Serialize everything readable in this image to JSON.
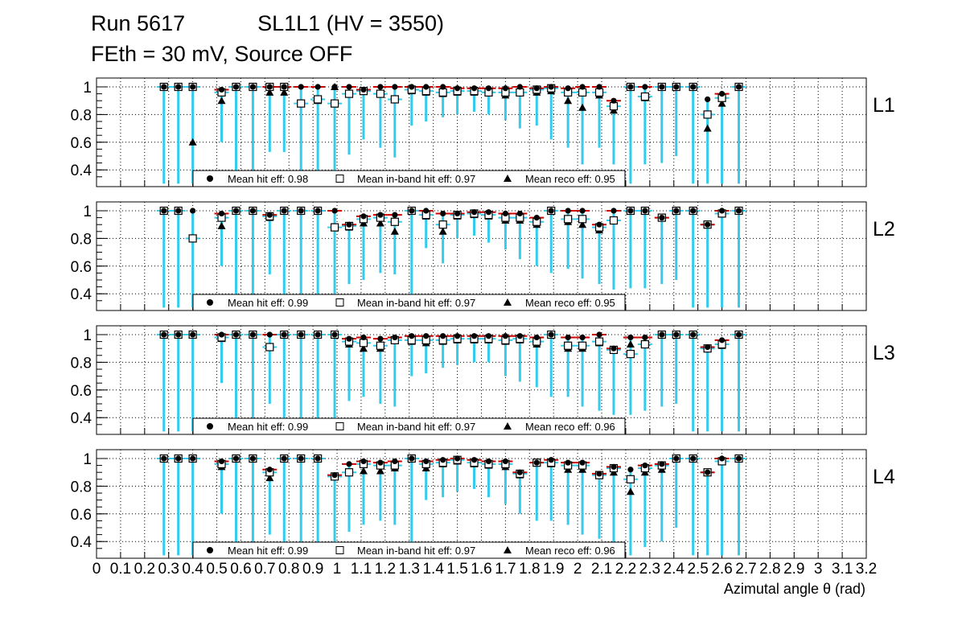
{
  "title": {
    "line1": "Run 5617            SL1L1 (HV = 3550)",
    "line2": "FEth = 30 mV, Source OFF"
  },
  "chart_data": {
    "type": "scatter",
    "xlabel": "Azimutal angle θ (rad)",
    "xlim": [
      0,
      3.2
    ],
    "x_ticks": [
      "0",
      "0.1",
      "0.2",
      "0.3",
      "0.4",
      "0.5",
      "0.6",
      "0.7",
      "0.8",
      "0.9",
      "1",
      "1.1",
      "1.2",
      "1.3",
      "1.4",
      "1.5",
      "1.6",
      "1.7",
      "1.8",
      "1.9",
      "2",
      "2.1",
      "2.2",
      "2.3",
      "2.4",
      "2.5",
      "2.6",
      "2.7",
      "2.8",
      "2.9",
      "3",
      "3.1",
      "3.2"
    ],
    "ylim": [
      0.3,
      1.05
    ],
    "y_ticks": [
      "0.4",
      "0.6",
      "0.8",
      "1"
    ],
    "grid": true,
    "series_styles": {
      "hit": {
        "marker": "filled-circle",
        "color": "#000000"
      },
      "inband": {
        "marker": "open-square",
        "color": "#000000"
      },
      "reco": {
        "marker": "filled-triangle",
        "color": "#000000"
      },
      "error_bar_color": "#33ccee",
      "accent_bar_color": "#cc0000",
      "accent_bar_color_2": "#8800cc"
    },
    "panels": [
      {
        "name": "L1",
        "legend": {
          "hit": "Mean hit  eff: 0.98",
          "inband": "Mean in-band hit eff: 0.97",
          "reco": "Mean reco eff: 0.95"
        },
        "x": [
          0.28,
          0.34,
          0.4,
          0.52,
          0.58,
          0.65,
          0.72,
          0.78,
          0.85,
          0.92,
          0.99,
          1.05,
          1.11,
          1.18,
          1.24,
          1.31,
          1.37,
          1.44,
          1.5,
          1.57,
          1.63,
          1.7,
          1.76,
          1.83,
          1.89,
          1.96,
          2.02,
          2.09,
          2.15,
          2.22,
          2.28,
          2.35,
          2.41,
          2.48,
          2.54,
          2.6,
          2.67
        ],
        "hit": [
          1,
          1,
          1,
          0.98,
          1,
          1,
          1,
          1,
          1,
          1,
          1,
          1,
          0.98,
          1,
          1,
          1,
          1,
          1,
          0.99,
          0.99,
          0.99,
          0.99,
          1,
          0.99,
          1,
          0.99,
          1,
          1,
          0.9,
          1,
          1,
          1,
          1,
          1,
          0.91,
          0.95,
          1
        ],
        "inband": [
          1,
          1,
          1,
          0.96,
          1,
          1,
          1,
          1,
          0.88,
          0.91,
          0.88,
          0.95,
          0.97,
          0.95,
          0.91,
          0.98,
          0.97,
          0.96,
          0.97,
          0.97,
          0.96,
          0.96,
          0.96,
          0.98,
          0.99,
          0.96,
          0.96,
          0.96,
          0.86,
          1,
          0.93,
          1,
          1,
          1,
          0.8,
          0.92,
          1
        ],
        "reco": [
          1,
          1,
          0.6,
          0.9,
          1,
          1,
          0.96,
          0.96,
          0.88,
          0.9,
          1,
          0.96,
          0.97,
          0.95,
          0.91,
          0.97,
          0.96,
          0.95,
          0.96,
          0.96,
          0.96,
          0.94,
          0.96,
          0.96,
          0.97,
          0.9,
          0.85,
          0.94,
          0.83,
          1,
          0.92,
          1,
          1,
          1,
          0.7,
          0.88,
          1
        ],
        "err_low": [
          0.3,
          0.3,
          0.3,
          0.6,
          0.3,
          0.3,
          0.53,
          0.53,
          0.3,
          0.3,
          0.3,
          0.51,
          0.62,
          0.56,
          0.49,
          0.72,
          0.75,
          0.78,
          0.8,
          0.82,
          0.8,
          0.76,
          0.7,
          0.72,
          0.62,
          0.56,
          0.44,
          0.56,
          0.44,
          0.3,
          0.44,
          0.45,
          0.5,
          0.3,
          0.3,
          0.3,
          0.3
        ]
      },
      {
        "name": "L2",
        "legend": {
          "hit": "Mean hit  eff: 0.99",
          "inband": "Mean in-band hit eff: 0.97",
          "reco": "Mean reco eff: 0.95"
        },
        "x": [
          0.28,
          0.34,
          0.4,
          0.52,
          0.58,
          0.65,
          0.72,
          0.78,
          0.85,
          0.92,
          0.99,
          1.05,
          1.11,
          1.18,
          1.24,
          1.31,
          1.37,
          1.44,
          1.5,
          1.57,
          1.63,
          1.7,
          1.76,
          1.83,
          1.89,
          1.96,
          2.02,
          2.09,
          2.15,
          2.22,
          2.28,
          2.35,
          2.41,
          2.48,
          2.54,
          2.6,
          2.67
        ],
        "hit": [
          1,
          1,
          1,
          0.98,
          1,
          1,
          0.97,
          1,
          1,
          1,
          1,
          0.9,
          0.96,
          0.97,
          0.97,
          1,
          1,
          0.98,
          0.98,
          0.99,
          0.99,
          0.98,
          0.98,
          0.95,
          1,
          1,
          1,
          0.9,
          1,
          1,
          1,
          0.95,
          1,
          1,
          0.9,
          1,
          1
        ],
        "inband": [
          1,
          1,
          0.8,
          0.95,
          1,
          1,
          0.96,
          1,
          1,
          1,
          0.88,
          0.89,
          0.94,
          0.95,
          0.92,
          1,
          0.97,
          0.9,
          0.97,
          0.98,
          0.97,
          0.95,
          0.95,
          0.92,
          1,
          0.94,
          0.94,
          0.88,
          0.93,
          1,
          1,
          0.95,
          1,
          1,
          0.9,
          0.98,
          1
        ],
        "reco": [
          1,
          1,
          0.8,
          0.89,
          1,
          1,
          0.95,
          1,
          1,
          1,
          0.88,
          0.88,
          0.91,
          0.91,
          0.85,
          1,
          0.96,
          0.85,
          0.96,
          0.97,
          0.96,
          0.93,
          0.93,
          0.9,
          1,
          0.92,
          0.9,
          0.86,
          0.93,
          1,
          1,
          0.95,
          1,
          1,
          0.9,
          0.98,
          1
        ],
        "err_low": [
          0.3,
          0.3,
          0.3,
          0.6,
          0.3,
          0.3,
          0.54,
          0.3,
          0.3,
          0.3,
          0.3,
          0.47,
          0.5,
          0.55,
          0.54,
          0.3,
          0.73,
          0.62,
          0.8,
          0.82,
          0.77,
          0.72,
          0.65,
          0.6,
          0.55,
          0.58,
          0.51,
          0.47,
          0.43,
          0.44,
          0.44,
          0.47,
          0.5,
          0.3,
          0.3,
          0.3,
          0.3
        ]
      },
      {
        "name": "L3",
        "legend": {
          "hit": "Mean hit  eff: 0.99",
          "inband": "Mean in-band hit eff: 0.97",
          "reco": "Mean reco eff: 0.96"
        },
        "x": [
          0.28,
          0.34,
          0.4,
          0.52,
          0.58,
          0.65,
          0.72,
          0.78,
          0.85,
          0.92,
          0.99,
          1.05,
          1.11,
          1.18,
          1.24,
          1.31,
          1.37,
          1.44,
          1.5,
          1.57,
          1.63,
          1.7,
          1.76,
          1.83,
          1.89,
          1.96,
          2.02,
          2.09,
          2.15,
          2.22,
          2.28,
          2.35,
          2.41,
          2.48,
          2.54,
          2.6,
          2.67
        ],
        "hit": [
          1,
          1,
          1,
          1,
          1,
          1,
          1,
          1,
          1,
          1,
          1,
          0.97,
          0.98,
          0.97,
          0.98,
          0.99,
          0.99,
          0.99,
          0.99,
          0.99,
          0.99,
          0.99,
          0.99,
          0.98,
          1,
          0.98,
          0.98,
          1,
          0.9,
          0.98,
          0.98,
          1,
          1,
          1,
          0.91,
          0.96,
          1
        ],
        "inband": [
          1,
          1,
          1,
          0.98,
          1,
          1,
          0.91,
          1,
          1,
          1,
          1,
          0.95,
          0.94,
          0.92,
          0.96,
          0.96,
          0.96,
          0.96,
          0.97,
          0.97,
          0.97,
          0.96,
          0.97,
          0.95,
          1,
          0.92,
          0.92,
          0.95,
          0.89,
          0.86,
          0.93,
          1,
          1,
          1,
          0.9,
          0.93,
          1
        ],
        "reco": [
          1,
          1,
          1,
          0.97,
          1,
          1,
          0.91,
          1,
          1,
          1,
          1,
          0.93,
          0.9,
          0.9,
          0.96,
          0.95,
          0.94,
          0.95,
          0.96,
          0.96,
          0.96,
          0.95,
          0.96,
          0.93,
          1,
          0.9,
          0.9,
          0.94,
          0.89,
          0.93,
          0.93,
          1,
          1,
          1,
          0.9,
          0.92,
          1
        ],
        "err_low": [
          0.3,
          0.3,
          0.3,
          0.65,
          0.3,
          0.3,
          0.5,
          0.3,
          0.3,
          0.3,
          0.3,
          0.52,
          0.55,
          0.5,
          0.48,
          0.7,
          0.72,
          0.76,
          0.78,
          0.8,
          0.8,
          0.7,
          0.66,
          0.62,
          0.55,
          0.55,
          0.48,
          0.45,
          0.42,
          0.42,
          0.45,
          0.48,
          0.5,
          0.3,
          0.3,
          0.3,
          0.3
        ]
      },
      {
        "name": "L4",
        "legend": {
          "hit": "Mean hit  eff: 0.99",
          "inband": "Mean in-band hit eff: 0.97",
          "reco": "Mean reco eff: 0.96"
        },
        "x": [
          0.28,
          0.34,
          0.4,
          0.52,
          0.58,
          0.65,
          0.72,
          0.78,
          0.85,
          0.92,
          0.99,
          1.05,
          1.11,
          1.18,
          1.24,
          1.31,
          1.37,
          1.44,
          1.5,
          1.57,
          1.63,
          1.7,
          1.76,
          1.83,
          1.89,
          1.96,
          2.02,
          2.09,
          2.15,
          2.22,
          2.28,
          2.35,
          2.41,
          2.48,
          2.54,
          2.6,
          2.67
        ],
        "hit": [
          1,
          1,
          1,
          0.98,
          1,
          1,
          0.92,
          1,
          1,
          1,
          0.88,
          0.96,
          0.98,
          0.97,
          0.98,
          1,
          0.98,
          0.99,
          1,
          0.99,
          0.98,
          0.98,
          0.9,
          0.97,
          0.99,
          0.97,
          0.97,
          0.89,
          0.94,
          0.92,
          0.95,
          0.96,
          1,
          1,
          0.9,
          1,
          1
        ],
        "inband": [
          1,
          1,
          1,
          0.96,
          1,
          1,
          0.9,
          1,
          1,
          1,
          0.87,
          0.9,
          0.96,
          0.95,
          0.95,
          1,
          0.96,
          0.97,
          0.99,
          0.97,
          0.96,
          0.96,
          0.89,
          0.97,
          0.97,
          0.95,
          0.95,
          0.88,
          0.93,
          0.85,
          0.93,
          0.95,
          1,
          1,
          0.9,
          0.98,
          1
        ],
        "reco": [
          1,
          1,
          1,
          0.94,
          1,
          1,
          0.86,
          1,
          1,
          1,
          0.87,
          0.9,
          0.91,
          0.91,
          0.93,
          1,
          0.93,
          0.96,
          0.98,
          0.96,
          0.95,
          0.94,
          0.88,
          0.97,
          0.96,
          0.92,
          0.92,
          0.88,
          0.9,
          0.76,
          0.9,
          0.92,
          1,
          1,
          0.9,
          0.98,
          1
        ],
        "err_low": [
          0.3,
          0.3,
          0.3,
          0.6,
          0.3,
          0.3,
          0.45,
          0.3,
          0.3,
          0.3,
          0.3,
          0.47,
          0.52,
          0.55,
          0.52,
          0.3,
          0.7,
          0.72,
          0.76,
          0.78,
          0.72,
          0.67,
          0.6,
          0.55,
          0.55,
          0.52,
          0.45,
          0.42,
          0.38,
          0.3,
          0.36,
          0.4,
          0.5,
          0.3,
          0.3,
          0.3,
          0.3
        ]
      }
    ]
  }
}
